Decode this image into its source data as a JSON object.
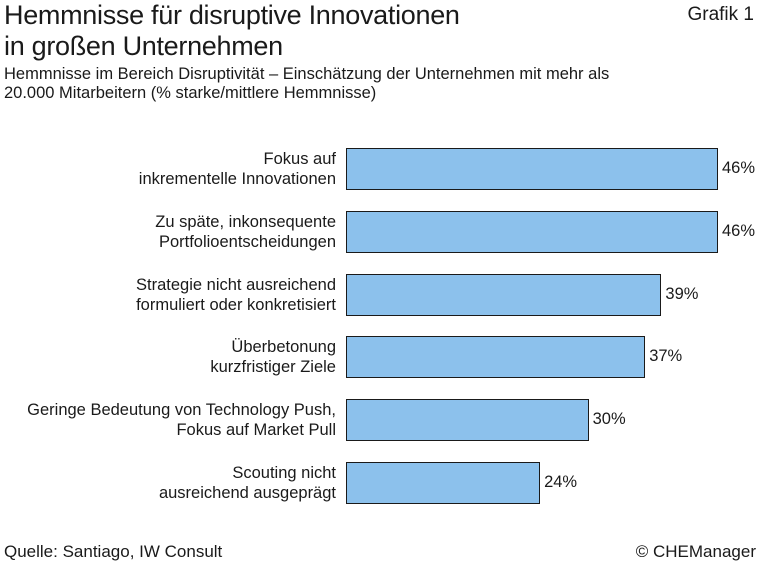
{
  "header": {
    "title": "Hemmnisse für disruptive Innovationen\nin großen Unternehmen",
    "figure_tag": "Grafik 1",
    "subtitle": "Hemmnisse im Bereich Disruptivität – Einschätzung der Unternehmen mit mehr als\n20.000 Mitarbeitern (% starke/mittlere Hemmnisse)"
  },
  "footer": {
    "source": "Quelle: Santiago, IW Consult",
    "copyright": "© CHEManager"
  },
  "colors": {
    "bar_fill": "#8cc1ec",
    "bar_border": "#1a1a1a",
    "text": "#1a1a1a"
  },
  "chart_data": {
    "type": "bar",
    "orientation": "horizontal",
    "categories": [
      "Fokus auf\ninkrementelle Innovationen",
      "Zu späte, inkonsequente\nPortfolioentscheidungen",
      "Strategie nicht ausreichend\nformuliert oder konkretisiert",
      "Überbetonung\nkurzfristiger Ziele",
      "Geringe Bedeutung von Technology Push,\nFokus auf Market Pull",
      "Scouting nicht\nausreichend ausgeprägt"
    ],
    "values": [
      46,
      46,
      39,
      37,
      30,
      24
    ],
    "value_labels": [
      "46%",
      "46%",
      "39%",
      "37%",
      "30%",
      "24%"
    ],
    "unit": "%",
    "xlim": [
      0,
      46
    ],
    "grid": false,
    "legend": "none"
  }
}
